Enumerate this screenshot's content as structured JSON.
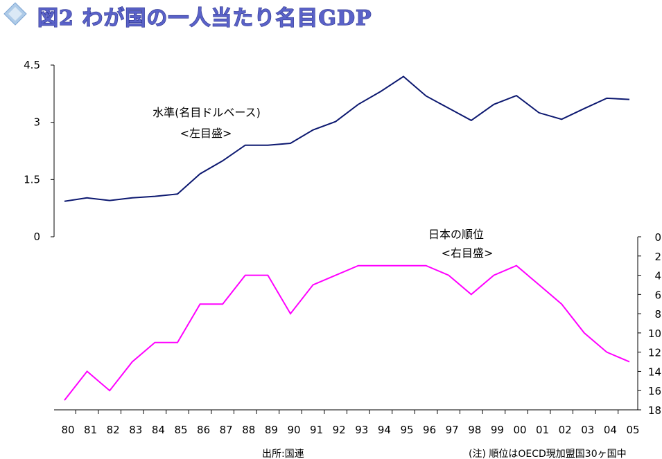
{
  "title": "図2 わが国の一人当たり名目GDP",
  "colors": {
    "level_line": "#0c1870",
    "rank_line": "#ff00ff",
    "title_fill": "#5a62c8",
    "title_icon": "#aecbe8",
    "axis": "#000000"
  },
  "icons": {
    "title_icon": "diamond-icon"
  },
  "annotations": {
    "level_label": "水準(名目ドルベース)",
    "level_axis_note": "<左目盛>",
    "rank_label": "日本の順位",
    "rank_axis_note": "<右目盛>"
  },
  "source": "出所:国連",
  "footnote": "(注) 順位はOECD現加盟国30ヶ国中",
  "chart_data": {
    "type": "line",
    "categories": [
      "80",
      "81",
      "82",
      "83",
      "84",
      "85",
      "86",
      "87",
      "88",
      "89",
      "90",
      "91",
      "92",
      "93",
      "94",
      "95",
      "96",
      "97",
      "98",
      "99",
      "00",
      "01",
      "02",
      "03",
      "04",
      "05"
    ],
    "left_axis": {
      "ticks": [
        "0",
        "1.5",
        "3",
        "4.5"
      ],
      "ylim": [
        0,
        4.5
      ]
    },
    "right_axis": {
      "ticks": [
        "0",
        "2",
        "4",
        "6",
        "8",
        "10",
        "12",
        "14",
        "16",
        "18"
      ],
      "ylim": [
        0,
        18
      ],
      "inverted": true
    },
    "grid": false,
    "series": [
      {
        "key": "level",
        "axis": "left",
        "values": [
          0.93,
          1.02,
          0.95,
          1.02,
          1.06,
          1.12,
          1.65,
          1.99,
          2.4,
          2.4,
          2.45,
          2.8,
          3.02,
          3.47,
          3.81,
          4.2,
          3.69,
          3.37,
          3.05,
          3.47,
          3.7,
          3.25,
          3.08,
          3.36,
          3.63,
          3.6
        ]
      },
      {
        "key": "rank",
        "axis": "right",
        "values": [
          17,
          14,
          16,
          13,
          11,
          11,
          7,
          7,
          4,
          4,
          8,
          5,
          4,
          3,
          3,
          3,
          3,
          4,
          6,
          4,
          3,
          5,
          7,
          10,
          12,
          13
        ]
      }
    ]
  }
}
